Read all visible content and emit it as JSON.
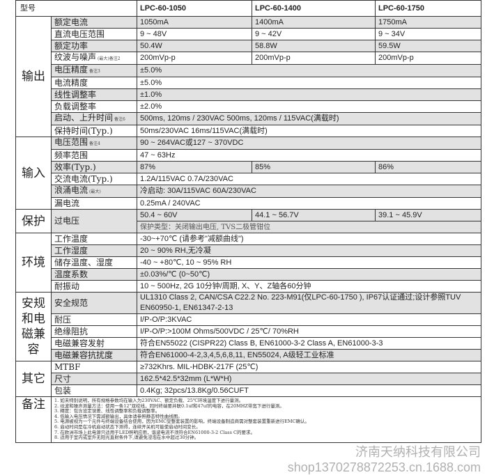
{
  "header": {
    "model_label": "型号",
    "models": [
      "LPC-60-1050",
      "LPC-60-1400",
      "LPC-60-1750"
    ]
  },
  "groups": [
    {
      "name": "输出",
      "rows": [
        {
          "label": "额定电流",
          "note": "",
          "values": [
            "1050mA",
            "1400mA",
            "1750mA"
          ],
          "shaded": true
        },
        {
          "label": "直流电压范围",
          "note": "",
          "values": [
            "9 ~ 48V",
            "9 ~ 42V",
            "9 ~ 34V"
          ],
          "shaded": false
        },
        {
          "label": "额定功率",
          "note": "",
          "values": [
            "50.4W",
            "58.8W",
            "59.5W"
          ],
          "shaded": true
        },
        {
          "label": "纹波与噪声",
          "note": "(最大)备注2",
          "values": [
            "200mVp-p",
            "200mVp-p",
            "200mVp-p"
          ],
          "shaded": false
        },
        {
          "label": "电压精度",
          "note": "备注3",
          "values": [
            "±5.0%"
          ],
          "shaded": true
        },
        {
          "label": "电流精度",
          "note": "",
          "values": [
            "±5.0%"
          ],
          "shaded": false
        },
        {
          "label": "线性调整率",
          "note": "",
          "values": [
            "±1.0%"
          ],
          "shaded": true
        },
        {
          "label": "负载调整率",
          "note": "",
          "values": [
            "±2.0%"
          ],
          "shaded": false
        },
        {
          "label": "启动、上升时间",
          "note": "备注6",
          "values": [
            "500ms, 120ms / 230VAC    500ms, 120ms / 115VAC(满载时)"
          ],
          "shaded": true
        },
        {
          "label": "保持时间(Typ.)",
          "note": "",
          "values": [
            "50ms/230VAC       16ms/115VAC(满载时)"
          ],
          "shaded": false
        }
      ]
    },
    {
      "name": "输入",
      "rows": [
        {
          "label": "电压范围",
          "note": "备注4",
          "values": [
            "90 ~ 264VAC或127 ~ 370VDC"
          ],
          "shaded": true
        },
        {
          "label": "频率范围",
          "note": "",
          "values": [
            "47 ~ 63Hz"
          ],
          "shaded": false
        },
        {
          "label": "效率(Typ.)",
          "note": "",
          "values": [
            "87%",
            "85%",
            "86%"
          ],
          "shaded": true
        },
        {
          "label": "交流电流(Typ.)",
          "note": "",
          "values": [
            "1.2A/115VAC    0.7A/230VAC"
          ],
          "shaded": false
        },
        {
          "label": "浪涌电流",
          "note": "(最大)",
          "values": [
            "冷启动: 30A/115VAC        60A/230VAC"
          ],
          "shaded": true
        },
        {
          "label": "漏电流",
          "note": "",
          "values": [
            "0.25mA / 240VAC"
          ],
          "shaded": false
        }
      ]
    },
    {
      "name": "保护",
      "rows": [
        {
          "label": "过电压",
          "note": "",
          "values": [
            "50.4 ~ 60V",
            "44.1 ~ 56.7V",
            "39.1 ~ 45.9V"
          ],
          "extra": "保护类型：关闭输出电压, TVS二极管钳位",
          "shaded": true
        }
      ]
    },
    {
      "name": "环境",
      "rows": [
        {
          "label": "工作温度",
          "note": "",
          "values": [
            "-30~+70℃ (请参考\"减额曲线\")"
          ],
          "shaded": false
        },
        {
          "label": "工作湿度",
          "note": "",
          "values": [
            "20 ~ 90% RH,无冷凝"
          ],
          "shaded": true
        },
        {
          "label": "储存温度、湿度",
          "note": "",
          "values": [
            "-40 ~ +80℃, 10 ~ 95% RH"
          ],
          "shaded": false
        },
        {
          "label": "温度系数",
          "note": "",
          "values": [
            "±0.03%/℃ (0~50℃)"
          ],
          "shaded": true
        },
        {
          "label": "耐振动",
          "note": "",
          "values": [
            "10 ~ 500Hz, 2G 10分钟/周期, X、Y、Z轴各60分钟"
          ],
          "shaded": false
        }
      ]
    },
    {
      "name": "安规和电磁兼容",
      "rows": [
        {
          "label": "安全规范",
          "note": "",
          "values": [
            "UL1310 Class 2, CAN/CSA C22.2 No. 223-M91(仅LPC-60-1750 ), IP67认证通过;设计参照TUV EN60950-1, EN61347-2-13"
          ],
          "shaded": true
        },
        {
          "label": "耐压",
          "note": "",
          "values": [
            "I/P-O/P:3KVAC"
          ],
          "shaded": false
        },
        {
          "label": "绝缘阻抗",
          "note": "",
          "values": [
            "I/P-O/P:>100M Ohms/500VDC / 25℃/ 70%RH"
          ],
          "shaded": false
        },
        {
          "label": "电磁兼容发射",
          "note": "",
          "values": [
            "符合EN55022 (CISPR22) Class B, EN61000-3-2 Class A, EN61000-3-3"
          ],
          "shaded": false
        },
        {
          "label": "电磁兼容抗扰度",
          "note": "",
          "values": [
            "符合EN61000-4-2,3,4,5,6,8,11, EN55024, A级轻工业标准"
          ],
          "shaded": true
        }
      ]
    },
    {
      "name": "其它",
      "rows": [
        {
          "label": "MTBF",
          "note": "",
          "values": [
            "≥732Khrs.    MIL-HDBK-217F (25℃)"
          ],
          "shaded": false
        },
        {
          "label": "尺寸",
          "note": "",
          "values": [
            "162.5*42.5*32mm (L*W*H)"
          ],
          "shaded": true
        },
        {
          "label": "包装",
          "note": "",
          "values": [
            "0.4Kg; 32pcs/13.8Kg/0.56CUFT"
          ],
          "shaded": false
        }
      ]
    }
  ],
  "notes": {
    "title": "备注",
    "items": [
      "1. 如未特别说明，所有规格参数均在输入为230VAC、额定负载、25℃环境温度下进行量测。",
      "2. 纹波和噪声测量方法：使用一条12\"双绞线，同时终端要并联0.1uf和47uf的电容，在20MHZ带宽下进行量测。",
      "3. 精度：包含设定误差、线性调整率和负载调整率。",
      "4. 低输入电压情况下需减额输出，具体请参照静态特性曲线图。",
      "5. 电源被视为一个元件与终端设备结合使用，因为EMC受整套装置的影响，终端设备制造商需对整套装置重新进行EMC确认。",
      "6. 启动时间是在冷机启动状态下测得，连续开关机可能使启动时间变长。",
      "7. 在欧洲市场上此电源只适用于LED照明应用，谐波电流不须符合EN61000-3-2 Class C的要求。",
      "8. 适用于室内或室外无阳光直射条件下,请避免浸泡在水中超过30分钟。"
    ]
  },
  "watermark": {
    "company": "济南天纳科技有限公司",
    "shop": "shop1370278872253.cn.1688.com"
  }
}
